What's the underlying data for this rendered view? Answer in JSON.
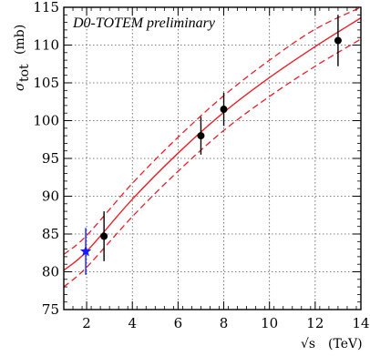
{
  "chart_data": {
    "type": "scatter",
    "annotation": "D0-TOTEM preliminary",
    "xlabel": {
      "prefix": "√s",
      "unit": "(TeV)"
    },
    "ylabel": {
      "symbol": "σ",
      "subscript": "tot",
      "unit": "(mb)"
    },
    "xlim": [
      1.0,
      14.0
    ],
    "ylim": [
      75,
      115
    ],
    "xticks": [
      2,
      4,
      6,
      8,
      10,
      12,
      14
    ],
    "yticks": [
      75,
      80,
      85,
      90,
      95,
      100,
      105,
      110,
      115
    ],
    "grid": true,
    "points": [
      {
        "x": 2.76,
        "y": 84.7,
        "err": 3.3,
        "color": "#000000",
        "marker": "circle"
      },
      {
        "x": 7.0,
        "y": 98.0,
        "err": 2.5,
        "color": "#000000",
        "marker": "circle"
      },
      {
        "x": 8.0,
        "y": 101.5,
        "err": 2.2,
        "color": "#000000",
        "marker": "circle"
      },
      {
        "x": 13.0,
        "y": 110.6,
        "err": 3.4,
        "color": "#000000",
        "marker": "circle"
      },
      {
        "x": 1.96,
        "y": 82.7,
        "err": 3.1,
        "color": "#1a1aff",
        "marker": "star"
      }
    ],
    "fit": {
      "x": [
        1.0,
        2.0,
        4.0,
        6.0,
        8.0,
        10.0,
        12.0,
        14.0
      ],
      "central": [
        80.2,
        82.7,
        89.6,
        95.7,
        101.1,
        105.7,
        109.8,
        113.6
      ],
      "upper": [
        82.3,
        84.8,
        91.7,
        97.8,
        103.3,
        108.0,
        112.1,
        115.0
      ],
      "lower": [
        78.0,
        80.6,
        87.3,
        93.3,
        98.7,
        103.2,
        107.2,
        110.8
      ],
      "color": "#e8202a"
    }
  }
}
